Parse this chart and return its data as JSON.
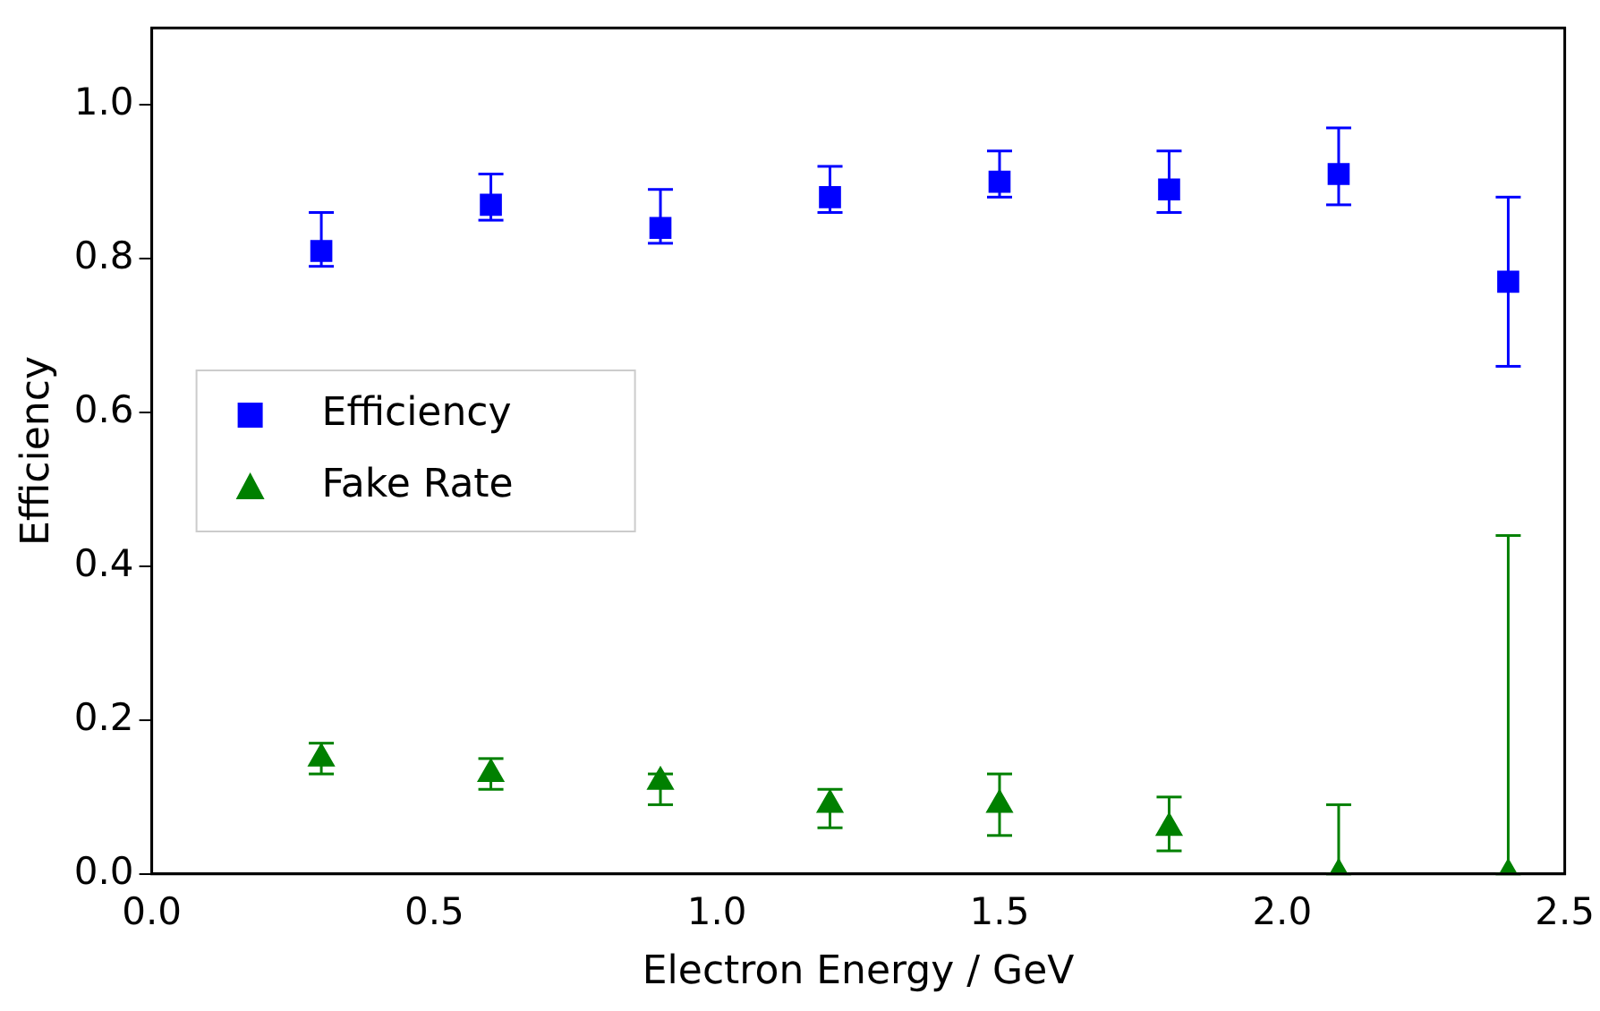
{
  "chart_data": {
    "type": "scatter",
    "xlabel": "Electron Energy / GeV",
    "ylabel": "Efficiency",
    "xlim": [
      0,
      2.5
    ],
    "xticks": [
      {
        "value": 0,
        "label": "0.0"
      },
      0.5,
      {
        "value": 1,
        "label": "1.0"
      },
      1.5,
      {
        "value": 2,
        "label": "2.0"
      },
      2.5
    ],
    "ylim": [
      0,
      1.1
    ],
    "yticks": [
      {
        "value": 0,
        "label": "0.0"
      },
      0.2,
      0.4,
      0.6,
      0.8,
      {
        "value": 1,
        "label": "1.0"
      }
    ],
    "grid": false,
    "legend": "center left",
    "series": [
      {
        "name": "Efficiency",
        "color": "#0000ff",
        "marker": "square",
        "x": [
          0.3,
          0.6,
          0.9,
          1.2,
          1.5,
          1.8,
          2.1,
          2.4
        ],
        "values": [
          0.81,
          0.87,
          0.84,
          0.88,
          0.9,
          0.89,
          0.91,
          0.77
        ],
        "errors": [
          [
            0.79,
            0.86
          ],
          [
            0.85,
            0.91
          ],
          [
            0.82,
            0.89
          ],
          [
            0.86,
            0.92
          ],
          [
            0.88,
            0.94
          ],
          [
            0.86,
            0.94
          ],
          [
            0.87,
            0.97
          ],
          [
            0.66,
            0.88
          ]
        ]
      },
      {
        "name": "Fake Rate",
        "color": "#008000",
        "marker": "triangle",
        "x": [
          0.3,
          0.6,
          0.9,
          1.2,
          1.5,
          1.8,
          2.1,
          2.4
        ],
        "values": [
          0.15,
          0.13,
          0.12,
          0.09,
          0.09,
          0.06,
          0,
          0
        ],
        "errors": [
          [
            0.13,
            0.17
          ],
          [
            0.11,
            0.15
          ],
          [
            0.09,
            0.13
          ],
          [
            0.06,
            0.11
          ],
          [
            0.05,
            0.13
          ],
          [
            0.03,
            0.1
          ],
          [
            0,
            0.09
          ],
          [
            0,
            0.44
          ]
        ]
      }
    ]
  }
}
